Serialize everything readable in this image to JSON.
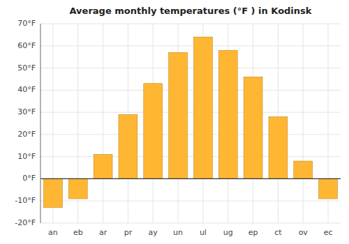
{
  "chart_data": {
    "type": "bar",
    "title": "Average monthly temperatures (°F ) in Kodinsk",
    "categories": [
      "an",
      "eb",
      "ar",
      "pr",
      "ay",
      "un",
      "ul",
      "ug",
      "ep",
      "ct",
      "ov",
      "ec"
    ],
    "values": [
      -13,
      -9,
      11,
      29,
      43,
      57,
      64,
      58,
      46,
      28,
      8,
      -9
    ],
    "color": "#FFB733",
    "ylim": [
      -20,
      70
    ],
    "yticks": [
      {
        "value": -20,
        "label": "-20°F"
      },
      {
        "value": -10,
        "label": "-10°F"
      },
      {
        "value": 0,
        "label": "0°F"
      },
      {
        "value": 10,
        "label": "10°F"
      },
      {
        "value": 20,
        "label": "20°F"
      },
      {
        "value": 30,
        "label": "30°F"
      },
      {
        "value": 40,
        "label": "40°F"
      },
      {
        "value": 50,
        "label": "50°F"
      },
      {
        "value": 60,
        "label": "60°F"
      },
      {
        "value": 70,
        "label": "70°F"
      }
    ],
    "grid": true
  }
}
